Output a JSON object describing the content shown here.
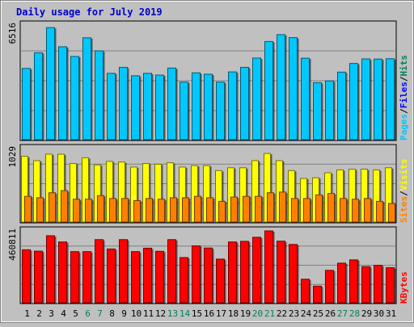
{
  "chart_data": {
    "type": "bar",
    "title": "Daily usage for July 2019",
    "categories": [
      "1",
      "2",
      "3",
      "4",
      "5",
      "6",
      "7",
      "8",
      "9",
      "10",
      "11",
      "12",
      "13",
      "14",
      "15",
      "16",
      "17",
      "18",
      "19",
      "20",
      "21",
      "22",
      "23",
      "24",
      "25",
      "26",
      "27",
      "28",
      "29",
      "30",
      "31"
    ],
    "weekend_days": [
      "6",
      "7",
      "13",
      "14",
      "20",
      "21",
      "27",
      "28"
    ],
    "panels": [
      {
        "name": "pages-files-hits",
        "max_label": "6516",
        "ylim": [
          0,
          6516
        ],
        "legend": [
          "Pages",
          "/",
          "Files",
          "/",
          "Hits"
        ],
        "series": [
          {
            "name": "Hits",
            "color": "#00805c",
            "values": [
              0,
              0,
              0,
              0,
              0,
              0,
              0,
              0,
              0,
              0,
              0,
              0,
              0,
              0,
              0,
              0,
              0,
              0,
              0,
              0,
              0,
              0,
              0,
              0,
              0,
              0,
              0,
              0,
              0,
              0,
              0
            ]
          },
          {
            "name": "Files",
            "color": "#0000ff",
            "values": [
              0,
              0,
              0,
              0,
              0,
              0,
              0,
              0,
              0,
              0,
              0,
              0,
              0,
              0,
              0,
              0,
              0,
              0,
              0,
              0,
              0,
              0,
              0,
              0,
              0,
              0,
              0,
              0,
              0,
              0,
              0
            ]
          },
          {
            "name": "Pages",
            "color": "#00c8ff",
            "values": [
              4050,
              4940,
              6370,
              5280,
              4730,
              5790,
              5050,
              3770,
              4110,
              3630,
              3770,
              3670,
              4070,
              3270,
              3800,
              3720,
              3270,
              3850,
              4110,
              4640,
              5580,
              5970,
              5800,
              4630,
              3240,
              3340,
              3840,
              4330,
              4590,
              4580,
              4600
            ]
          }
        ]
      },
      {
        "name": "sites-visits",
        "max_label": "1029",
        "ylim": [
          0,
          1029
        ],
        "legend": [
          "Sites",
          "/",
          "Visits"
        ],
        "series": [
          {
            "name": "Visits",
            "color": "#ffff00",
            "values": [
              920,
              860,
              950,
              950,
              820,
              900,
              800,
              850,
              840,
              770,
              820,
              810,
              830,
              770,
              790,
              790,
              720,
              760,
              760,
              860,
              960,
              860,
              720,
              610,
              620,
              690,
              730,
              740,
              740,
              730,
              760
            ]
          },
          {
            "name": "Sites",
            "color": "#ff8000",
            "values": [
              360,
              340,
              410,
              440,
              320,
              320,
              370,
              330,
              330,
              300,
              330,
              320,
              340,
              340,
              360,
              340,
              290,
              350,
              360,
              360,
              410,
              420,
              330,
              330,
              380,
              400,
              330,
              320,
              330,
              290,
              260
            ]
          }
        ]
      },
      {
        "name": "kbytes",
        "max_label": "460811",
        "ylim": [
          0,
          460811
        ],
        "legend": [
          "KBytes"
        ],
        "series": [
          {
            "name": "KBytes",
            "color": "#ff0000",
            "values": [
              340000,
              331000,
              430000,
              390000,
              328000,
              328000,
              405000,
              345000,
              405000,
              328000,
              350000,
              330000,
              405000,
              290000,
              365000,
              351000,
              280000,
              390000,
              394000,
              420000,
              460811,
              395000,
              374000,
              151000,
              107000,
              208000,
              254000,
              275000,
              232000,
              240000,
              225000
            ]
          }
        ]
      }
    ],
    "grid": true,
    "legend_position": "right-vertical"
  }
}
